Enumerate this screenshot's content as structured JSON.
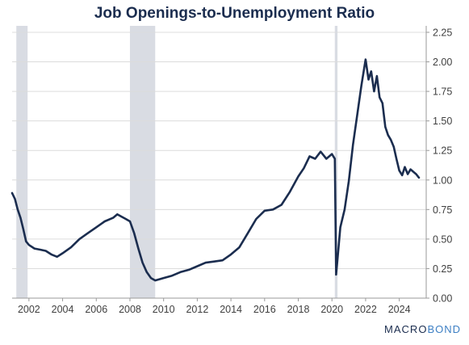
{
  "chart_data": {
    "type": "line",
    "title": "Job Openings-to-Unemployment Ratio",
    "xlabel": "",
    "ylabel": "",
    "xlim": [
      2001.0,
      2025.6
    ],
    "ylim": [
      0,
      2.25
    ],
    "x_ticks": [
      2002,
      2004,
      2006,
      2008,
      2010,
      2012,
      2014,
      2016,
      2018,
      2020,
      2022,
      2024
    ],
    "y_ticks": [
      "0.00",
      "0.25",
      "0.50",
      "0.75",
      "1.00",
      "1.25",
      "1.50",
      "1.75",
      "2.00",
      "2.25"
    ],
    "y_axis_side": "right",
    "grid": "horizontal",
    "line_color": "#1b2d4f",
    "shade_color": "#d9dce3",
    "recessions": [
      [
        2001.25,
        2001.92
      ],
      [
        2008.0,
        2009.5
      ],
      [
        2020.17,
        2020.33
      ]
    ],
    "series": [
      {
        "x": [
          2001.0,
          2001.17,
          2001.33,
          2001.5,
          2001.67,
          2001.83,
          2002.0,
          2002.33,
          2002.67,
          2003.0,
          2003.33,
          2003.67,
          2004.0,
          2004.5,
          2005.0,
          2005.5,
          2006.0,
          2006.5,
          2007.0,
          2007.25,
          2007.5,
          2007.75,
          2008.0,
          2008.25,
          2008.5,
          2008.75,
          2009.0,
          2009.25,
          2009.5,
          2009.75,
          2010.0,
          2010.5,
          2011.0,
          2011.5,
          2012.0,
          2012.5,
          2013.0,
          2013.5,
          2014.0,
          2014.5,
          2015.0,
          2015.5,
          2016.0,
          2016.5,
          2017.0,
          2017.5,
          2018.0,
          2018.33,
          2018.67,
          2019.0,
          2019.33,
          2019.67,
          2020.0,
          2020.08,
          2020.17,
          2020.25,
          2020.33,
          2020.5,
          2020.75,
          2021.0,
          2021.25,
          2021.5,
          2021.75,
          2022.0,
          2022.17,
          2022.33,
          2022.5,
          2022.67,
          2022.83,
          2023.0,
          2023.17,
          2023.33,
          2023.5,
          2023.67,
          2023.83,
          2024.0,
          2024.17,
          2024.33,
          2024.5,
          2024.67,
          2024.83,
          2025.0,
          2025.17
        ],
        "y": [
          0.89,
          0.84,
          0.75,
          0.68,
          0.58,
          0.48,
          0.45,
          0.42,
          0.41,
          0.4,
          0.37,
          0.35,
          0.38,
          0.43,
          0.5,
          0.55,
          0.6,
          0.65,
          0.68,
          0.71,
          0.69,
          0.67,
          0.65,
          0.55,
          0.42,
          0.3,
          0.22,
          0.17,
          0.15,
          0.16,
          0.17,
          0.19,
          0.22,
          0.24,
          0.27,
          0.3,
          0.31,
          0.32,
          0.37,
          0.43,
          0.55,
          0.67,
          0.74,
          0.75,
          0.79,
          0.9,
          1.03,
          1.1,
          1.2,
          1.18,
          1.24,
          1.18,
          1.22,
          1.2,
          1.18,
          0.2,
          0.33,
          0.6,
          0.75,
          0.99,
          1.3,
          1.55,
          1.8,
          2.02,
          1.85,
          1.92,
          1.75,
          1.88,
          1.7,
          1.65,
          1.45,
          1.38,
          1.34,
          1.28,
          1.18,
          1.08,
          1.04,
          1.11,
          1.05,
          1.09,
          1.07,
          1.05,
          1.02
        ]
      }
    ]
  },
  "brand": {
    "prefix": "MACRO",
    "suffix": "BOND"
  }
}
